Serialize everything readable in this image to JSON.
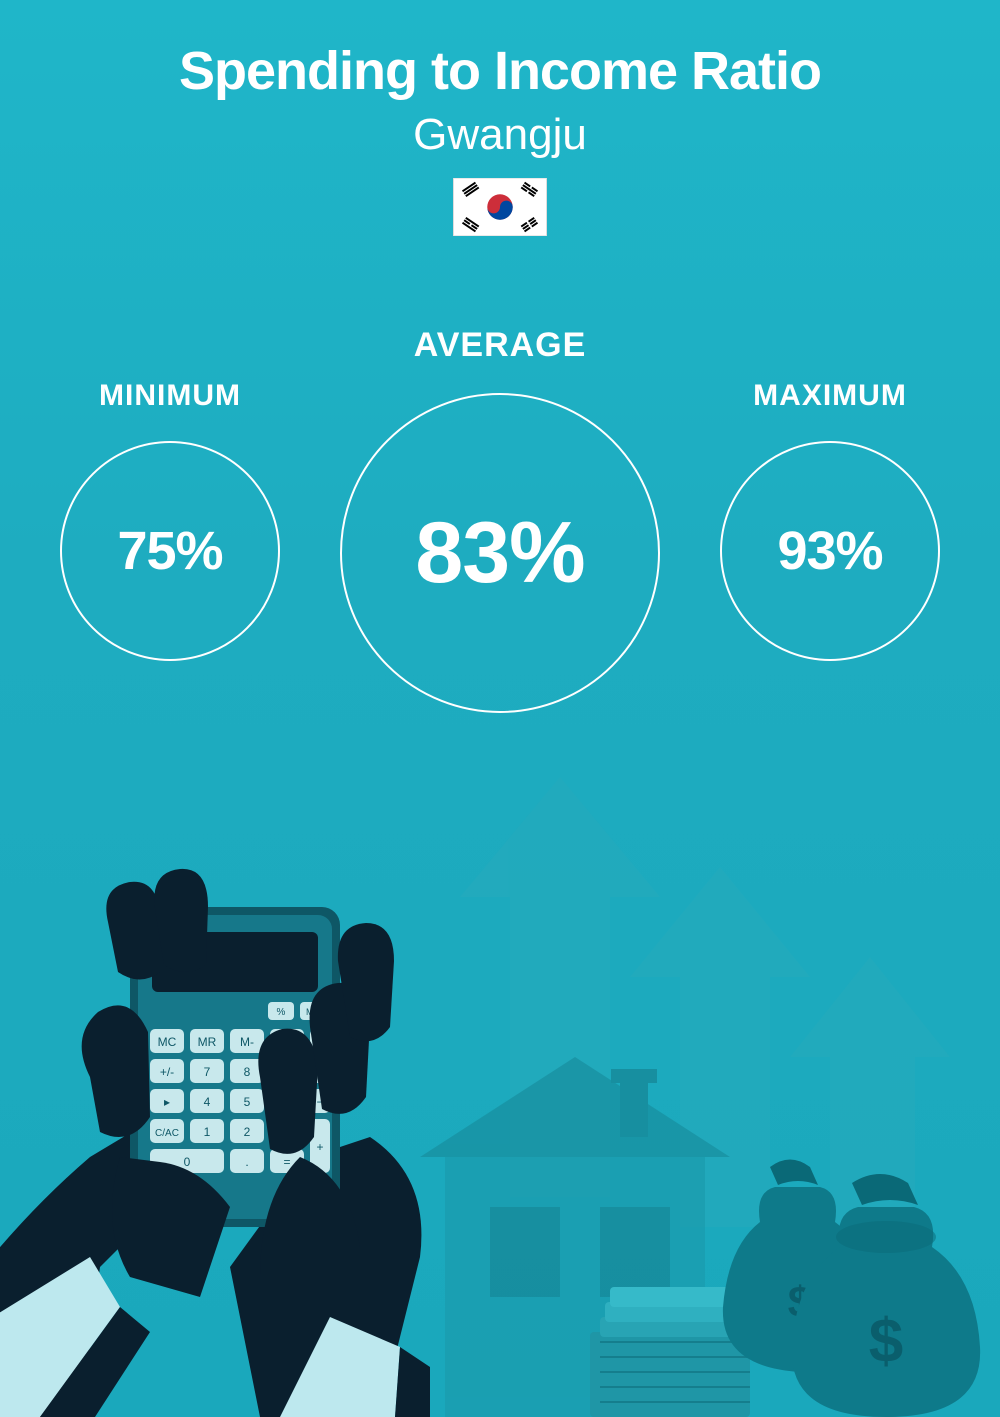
{
  "header": {
    "title": "Spending to Income Ratio",
    "subtitle": "Gwangju",
    "title_fontsize": 54,
    "title_color": "#ffffff",
    "subtitle_fontsize": 44,
    "subtitle_color": "#ffffff"
  },
  "flag": {
    "bg": "#ffffff",
    "red": "#cd2e3a",
    "blue": "#0047a0",
    "black": "#000000"
  },
  "stats": {
    "minimum": {
      "label": "MINIMUM",
      "value": "75%",
      "circle_size": 220,
      "value_fontsize": 54,
      "label_fontsize": 30
    },
    "average": {
      "label": "AVERAGE",
      "value": "83%",
      "circle_size": 320,
      "value_fontsize": 86,
      "label_fontsize": 34
    },
    "maximum": {
      "label": "MAXIMUM",
      "value": "93%",
      "circle_size": 220,
      "value_fontsize": 54,
      "label_fontsize": 30
    }
  },
  "colors": {
    "background_top": "#1fb6c9",
    "background_bottom": "#1aa8bc",
    "text": "#ffffff",
    "circle_border": "#ffffff",
    "illus_dark": "#0a1f2e",
    "illus_mid": "#0e5766",
    "illus_light": "#2fa8b8",
    "illus_faint": "#2bb4c6",
    "cuff": "#bde8ee",
    "arrow": "#26aabc",
    "house": "#1a9aab",
    "money_bag": "#0e7a8a",
    "dollar": "#0a5e6c"
  }
}
